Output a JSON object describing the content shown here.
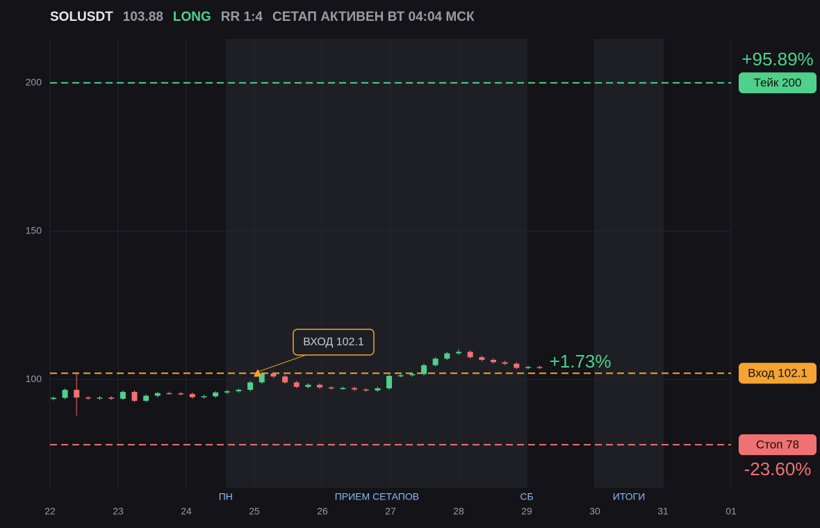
{
  "header": {
    "symbol": "SOLUSDT",
    "price": "103.88",
    "side": "LONG",
    "rr": "RR 1:4",
    "status": "СЕТАП АКТИВЕН ВТ 04:04 МСК"
  },
  "chart_data": {
    "type": "candlestick",
    "x": [
      0.05,
      0.22,
      0.39,
      0.56,
      0.73,
      0.9,
      1.07,
      1.24,
      1.41,
      1.58,
      1.75,
      1.92,
      2.09,
      2.26,
      2.43,
      2.6,
      2.77,
      2.94,
      3.11,
      3.28,
      3.45,
      3.62,
      3.79,
      3.96,
      4.13,
      4.3,
      4.47,
      4.64,
      4.81,
      4.98,
      5.15,
      5.32,
      5.49,
      5.66,
      5.83,
      6.0,
      6.17,
      6.34,
      6.51,
      6.68,
      6.85,
      7.02,
      7.19
    ],
    "open": [
      93.4,
      93.8,
      96.5,
      93.9,
      93.6,
      93.9,
      93.5,
      95.8,
      92.8,
      94.5,
      95.4,
      95.3,
      95.1,
      94.0,
      94.3,
      95.6,
      96.0,
      96.5,
      99.0,
      102.0,
      101.0,
      99.0,
      97.5,
      98.2,
      97.3,
      97.0,
      97.1,
      96.6,
      96.3,
      97.0,
      101.2,
      101.4,
      101.8,
      104.8,
      107.0,
      108.8,
      109.3,
      107.5,
      106.6,
      105.8,
      105.3,
      103.9,
      104.2
    ],
    "high": [
      94.3,
      97.0,
      102.5,
      94.4,
      94.4,
      94.4,
      96.3,
      96.3,
      95.0,
      95.9,
      95.9,
      95.8,
      95.6,
      94.8,
      96.1,
      96.5,
      97.0,
      99.5,
      102.5,
      102.5,
      101.5,
      99.5,
      98.7,
      98.7,
      97.8,
      97.6,
      97.6,
      97.1,
      97.5,
      101.7,
      101.9,
      102.3,
      105.3,
      107.5,
      109.3,
      110.2,
      109.8,
      108.0,
      107.1,
      106.3,
      105.8,
      104.7,
      104.7
    ],
    "low": [
      92.9,
      93.3,
      87.8,
      93.1,
      93.1,
      93.0,
      93.0,
      92.3,
      92.3,
      94.0,
      94.8,
      94.6,
      93.5,
      93.5,
      93.8,
      95.1,
      95.5,
      96.0,
      98.5,
      100.5,
      98.5,
      97.0,
      97.0,
      96.8,
      96.5,
      96.5,
      96.1,
      95.8,
      95.8,
      96.5,
      100.7,
      100.9,
      101.3,
      104.3,
      106.5,
      108.3,
      107.0,
      106.1,
      105.3,
      104.8,
      103.4,
      103.4,
      103.5
    ],
    "close": [
      93.8,
      96.5,
      93.9,
      93.6,
      93.9,
      93.5,
      95.8,
      92.8,
      94.5,
      95.4,
      95.3,
      95.1,
      94.0,
      94.3,
      95.6,
      96.0,
      96.5,
      99.0,
      102.0,
      101.0,
      99.0,
      97.5,
      98.2,
      97.3,
      97.0,
      97.1,
      96.6,
      96.3,
      97.0,
      101.2,
      101.4,
      101.8,
      104.8,
      107.0,
      108.8,
      109.3,
      107.5,
      106.6,
      105.8,
      105.3,
      103.9,
      104.2,
      104.0
    ],
    "up_color": "#4fd18b",
    "down_color": "#f07171",
    "xlim": [
      0,
      10
    ],
    "xticks": [
      {
        "value": 0,
        "label": "22"
      },
      {
        "value": 1,
        "label": "23"
      },
      {
        "value": 2,
        "label": "24"
      },
      {
        "value": 3,
        "label": "25"
      },
      {
        "value": 4,
        "label": "26"
      },
      {
        "value": 5,
        "label": "27"
      },
      {
        "value": 6,
        "label": "28"
      },
      {
        "value": 7,
        "label": "29"
      },
      {
        "value": 8,
        "label": "30"
      },
      {
        "value": 9,
        "label": "31"
      },
      {
        "value": 10,
        "label": "01"
      }
    ],
    "ylim": [
      63.5,
      214.8
    ],
    "yticks": [
      100,
      150,
      200
    ],
    "grid": true,
    "levels": [
      {
        "name": "Тейк 200",
        "value": 200,
        "color": "#4fd18b",
        "change": "+95.89%"
      },
      {
        "name": "Вход 102.1",
        "value": 102.1,
        "color": "#f5a331"
      },
      {
        "name": "Стоп 78",
        "value": 78,
        "color": "#f07171",
        "change": "-23.60%"
      }
    ],
    "entry_marker": {
      "label": "ВХОД 102.1",
      "x": 3.05,
      "value": 102.1
    },
    "current_change": "+1.73%",
    "sessions": [
      {
        "start": 2.58,
        "end": 7.0
      },
      {
        "start": 8,
        "end": 9
      }
    ],
    "session_labels": [
      {
        "label": "ПН",
        "x": 2.58
      },
      {
        "label": "ПРИЕМ СЕТАПОВ",
        "x": 4.8
      },
      {
        "label": "СБ",
        "x": 7.0
      },
      {
        "label": "ИТОГИ",
        "x": 8.5
      }
    ]
  }
}
